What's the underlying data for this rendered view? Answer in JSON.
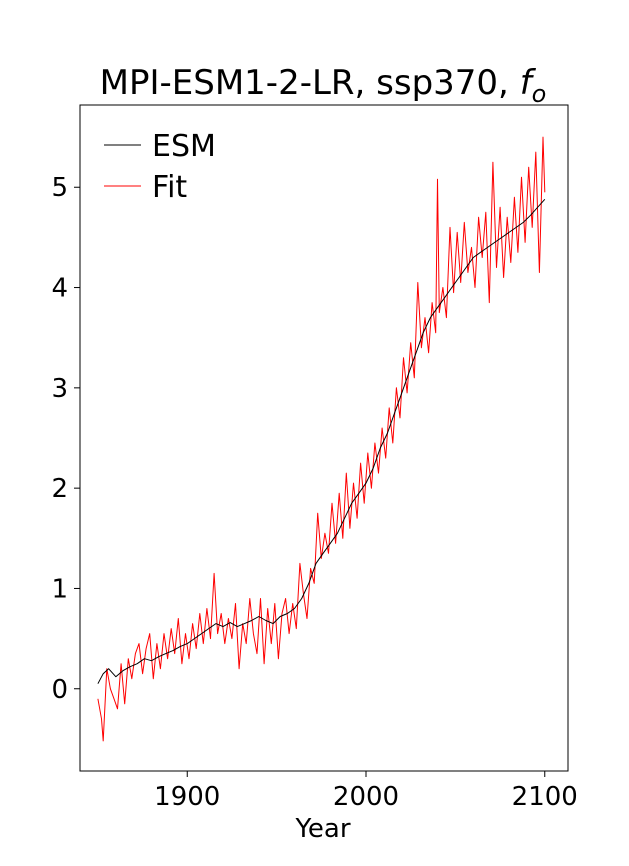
{
  "chart_data": {
    "type": "line",
    "title": "MPI-ESM1-2-LR, ssp370, ",
    "title_symbol": "f",
    "title_subscript": "o",
    "xlabel": "Year",
    "ylabel": "",
    "xlim": [
      1840,
      2113
    ],
    "ylim": [
      -0.82,
      5.82
    ],
    "xticks": [
      1900,
      2000,
      2100
    ],
    "yticks": [
      0,
      1,
      2,
      3,
      4,
      5
    ],
    "grid": false,
    "legend_position": "top-left",
    "series": [
      {
        "name": "ESM",
        "color": "#000000",
        "points": [
          [
            1850,
            0.05
          ],
          [
            1853,
            0.15
          ],
          [
            1856,
            0.2
          ],
          [
            1860,
            0.12
          ],
          [
            1864,
            0.18
          ],
          [
            1868,
            0.22
          ],
          [
            1872,
            0.25
          ],
          [
            1876,
            0.3
          ],
          [
            1880,
            0.28
          ],
          [
            1884,
            0.32
          ],
          [
            1888,
            0.35
          ],
          [
            1892,
            0.38
          ],
          [
            1896,
            0.42
          ],
          [
            1900,
            0.45
          ],
          [
            1904,
            0.5
          ],
          [
            1908,
            0.55
          ],
          [
            1912,
            0.6
          ],
          [
            1916,
            0.65
          ],
          [
            1920,
            0.62
          ],
          [
            1924,
            0.66
          ],
          [
            1928,
            0.62
          ],
          [
            1932,
            0.65
          ],
          [
            1936,
            0.68
          ],
          [
            1940,
            0.72
          ],
          [
            1944,
            0.68
          ],
          [
            1948,
            0.65
          ],
          [
            1952,
            0.72
          ],
          [
            1956,
            0.75
          ],
          [
            1960,
            0.8
          ],
          [
            1964,
            0.9
          ],
          [
            1968,
            1.05
          ],
          [
            1972,
            1.25
          ],
          [
            1976,
            1.35
          ],
          [
            1980,
            1.45
          ],
          [
            1984,
            1.55
          ],
          [
            1988,
            1.7
          ],
          [
            1992,
            1.85
          ],
          [
            1996,
            1.95
          ],
          [
            2000,
            2.05
          ],
          [
            2004,
            2.2
          ],
          [
            2008,
            2.4
          ],
          [
            2012,
            2.55
          ],
          [
            2016,
            2.75
          ],
          [
            2020,
            2.95
          ],
          [
            2024,
            3.15
          ],
          [
            2028,
            3.35
          ],
          [
            2032,
            3.55
          ],
          [
            2036,
            3.7
          ],
          [
            2040,
            3.8
          ],
          [
            2044,
            3.9
          ],
          [
            2048,
            4.0
          ],
          [
            2052,
            4.1
          ],
          [
            2056,
            4.2
          ],
          [
            2060,
            4.3
          ],
          [
            2064,
            4.35
          ],
          [
            2068,
            4.4
          ],
          [
            2072,
            4.45
          ],
          [
            2076,
            4.5
          ],
          [
            2080,
            4.55
          ],
          [
            2084,
            4.6
          ],
          [
            2088,
            4.65
          ],
          [
            2092,
            4.72
          ],
          [
            2096,
            4.8
          ],
          [
            2100,
            4.88
          ]
        ]
      },
      {
        "name": "Fit",
        "color": "#ff0000",
        "points": [
          [
            1850,
            -0.1
          ],
          [
            1852,
            -0.3
          ],
          [
            1853,
            -0.52
          ],
          [
            1855,
            0.2
          ],
          [
            1857,
            0.0
          ],
          [
            1859,
            -0.1
          ],
          [
            1861,
            -0.2
          ],
          [
            1863,
            0.25
          ],
          [
            1865,
            -0.15
          ],
          [
            1867,
            0.3
          ],
          [
            1869,
            0.1
          ],
          [
            1871,
            0.35
          ],
          [
            1873,
            0.45
          ],
          [
            1875,
            0.15
          ],
          [
            1877,
            0.4
          ],
          [
            1879,
            0.55
          ],
          [
            1881,
            0.1
          ],
          [
            1883,
            0.45
          ],
          [
            1885,
            0.2
          ],
          [
            1887,
            0.55
          ],
          [
            1889,
            0.3
          ],
          [
            1891,
            0.6
          ],
          [
            1893,
            0.35
          ],
          [
            1895,
            0.7
          ],
          [
            1897,
            0.25
          ],
          [
            1899,
            0.55
          ],
          [
            1901,
            0.3
          ],
          [
            1903,
            0.65
          ],
          [
            1905,
            0.4
          ],
          [
            1907,
            0.75
          ],
          [
            1909,
            0.45
          ],
          [
            1911,
            0.8
          ],
          [
            1913,
            0.5
          ],
          [
            1915,
            1.15
          ],
          [
            1917,
            0.55
          ],
          [
            1919,
            0.75
          ],
          [
            1921,
            0.45
          ],
          [
            1923,
            0.7
          ],
          [
            1925,
            0.5
          ],
          [
            1927,
            0.85
          ],
          [
            1929,
            0.2
          ],
          [
            1931,
            0.65
          ],
          [
            1933,
            0.45
          ],
          [
            1935,
            0.9
          ],
          [
            1937,
            0.55
          ],
          [
            1939,
            0.35
          ],
          [
            1941,
            0.9
          ],
          [
            1943,
            0.25
          ],
          [
            1945,
            0.8
          ],
          [
            1947,
            0.45
          ],
          [
            1949,
            0.85
          ],
          [
            1951,
            0.3
          ],
          [
            1953,
            0.75
          ],
          [
            1955,
            0.9
          ],
          [
            1957,
            0.55
          ],
          [
            1959,
            0.85
          ],
          [
            1961,
            0.6
          ],
          [
            1963,
            1.25
          ],
          [
            1965,
            0.95
          ],
          [
            1967,
            0.7
          ],
          [
            1969,
            1.2
          ],
          [
            1971,
            1.05
          ],
          [
            1973,
            1.75
          ],
          [
            1975,
            1.3
          ],
          [
            1977,
            1.55
          ],
          [
            1979,
            1.35
          ],
          [
            1981,
            1.85
          ],
          [
            1983,
            1.45
          ],
          [
            1985,
            1.95
          ],
          [
            1987,
            1.5
          ],
          [
            1989,
            2.15
          ],
          [
            1991,
            1.6
          ],
          [
            1993,
            2.05
          ],
          [
            1995,
            1.7
          ],
          [
            1997,
            2.25
          ],
          [
            1999,
            1.85
          ],
          [
            2001,
            2.35
          ],
          [
            2003,
            2.0
          ],
          [
            2005,
            2.45
          ],
          [
            2007,
            2.15
          ],
          [
            2009,
            2.6
          ],
          [
            2011,
            2.3
          ],
          [
            2013,
            2.8
          ],
          [
            2015,
            2.45
          ],
          [
            2017,
            3.0
          ],
          [
            2019,
            2.7
          ],
          [
            2021,
            3.3
          ],
          [
            2023,
            2.95
          ],
          [
            2025,
            3.45
          ],
          [
            2027,
            3.1
          ],
          [
            2029,
            4.05
          ],
          [
            2031,
            3.4
          ],
          [
            2033,
            3.7
          ],
          [
            2035,
            3.35
          ],
          [
            2037,
            3.85
          ],
          [
            2039,
            3.55
          ],
          [
            2040,
            5.08
          ],
          [
            2041,
            3.75
          ],
          [
            2043,
            4.0
          ],
          [
            2045,
            3.7
          ],
          [
            2047,
            4.6
          ],
          [
            2049,
            3.95
          ],
          [
            2051,
            4.55
          ],
          [
            2053,
            4.05
          ],
          [
            2055,
            4.65
          ],
          [
            2057,
            4.15
          ],
          [
            2059,
            4.4
          ],
          [
            2061,
            4.0
          ],
          [
            2063,
            4.7
          ],
          [
            2065,
            4.3
          ],
          [
            2067,
            4.75
          ],
          [
            2069,
            3.85
          ],
          [
            2071,
            5.25
          ],
          [
            2073,
            4.2
          ],
          [
            2075,
            4.8
          ],
          [
            2077,
            4.1
          ],
          [
            2079,
            4.7
          ],
          [
            2081,
            4.25
          ],
          [
            2083,
            4.9
          ],
          [
            2085,
            4.35
          ],
          [
            2087,
            5.1
          ],
          [
            2089,
            4.45
          ],
          [
            2091,
            5.2
          ],
          [
            2093,
            4.6
          ],
          [
            2095,
            5.35
          ],
          [
            2097,
            4.15
          ],
          [
            2099,
            5.5
          ],
          [
            2100,
            4.95
          ]
        ]
      }
    ]
  }
}
